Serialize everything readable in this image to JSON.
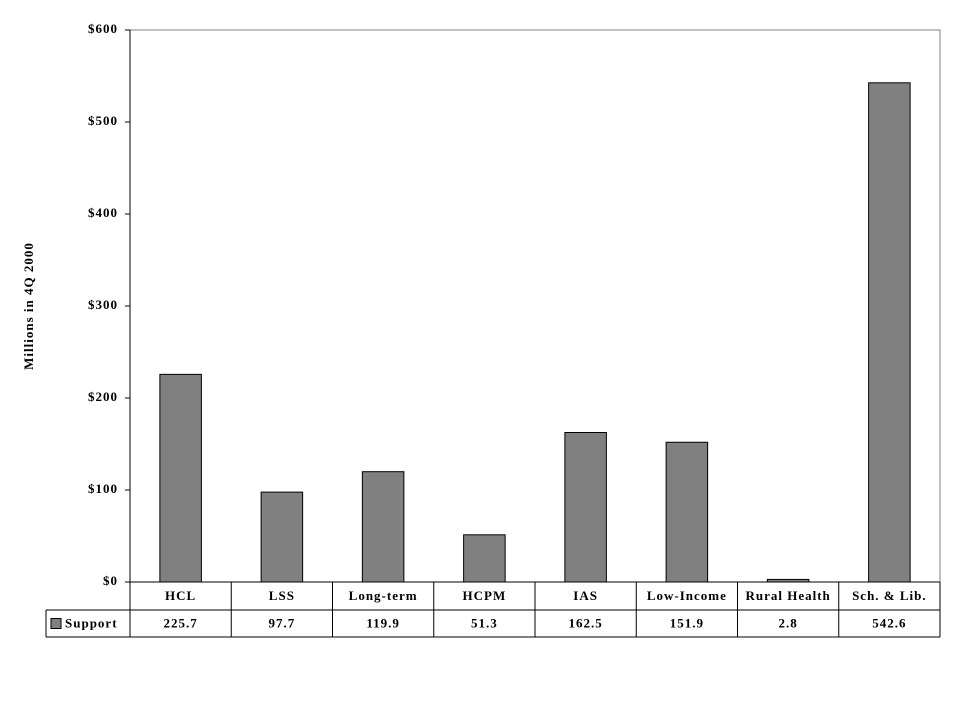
{
  "chart_data": {
    "type": "bar",
    "ylabel": "Millions in 4Q 2000",
    "categories": [
      "HCL",
      "LSS",
      "Long-term",
      "HCPM",
      "IAS",
      "Low-Income",
      "Rural Health",
      "Sch. & Lib."
    ],
    "series": [
      {
        "name": "Support",
        "color": "#808080",
        "values": [
          225.7,
          97.7,
          119.9,
          51.3,
          162.5,
          151.9,
          2.8,
          542.6
        ]
      }
    ],
    "ylim": [
      0,
      600
    ],
    "yticks": [
      {
        "value": 0,
        "label": "$0"
      },
      {
        "value": 100,
        "label": "$100"
      },
      {
        "value": 200,
        "label": "$200"
      },
      {
        "value": 300,
        "label": "$300"
      },
      {
        "value": 400,
        "label": "$400"
      },
      {
        "value": 500,
        "label": "$500"
      },
      {
        "value": 600,
        "label": "$600"
      }
    ],
    "data_table": true
  }
}
